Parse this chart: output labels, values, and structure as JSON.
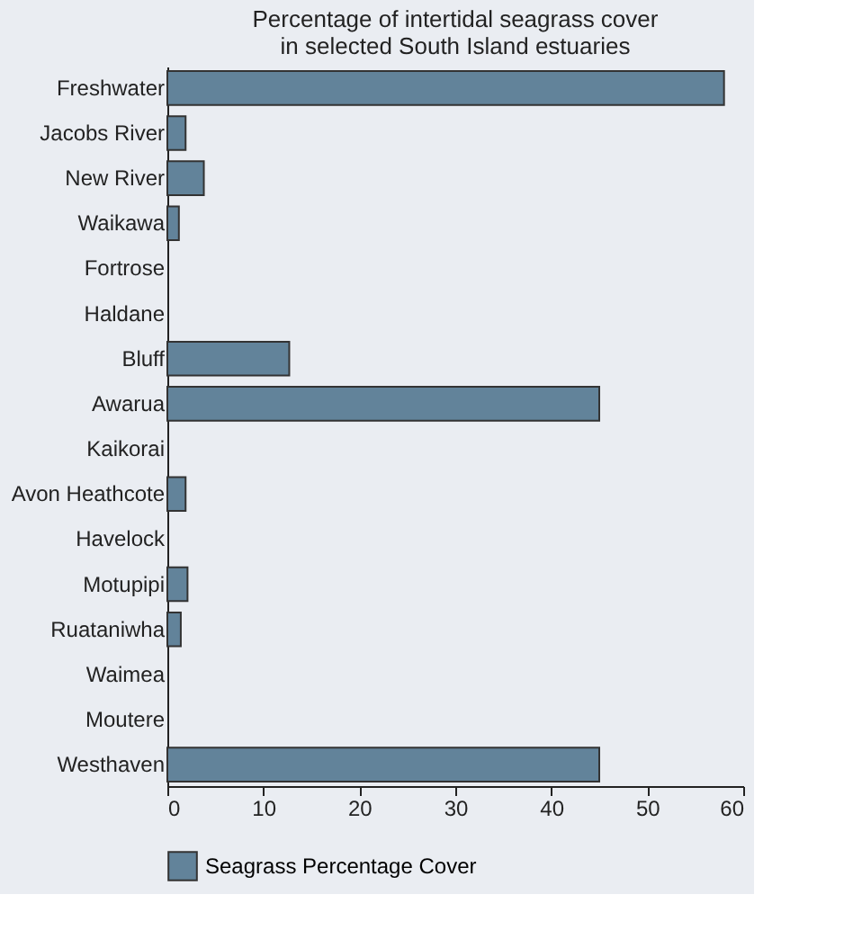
{
  "chart_data": {
    "type": "bar",
    "orientation": "horizontal",
    "title": [
      "Percentage of intertidal seagrass cover",
      "in selected South Island estuaries"
    ],
    "categories": [
      "Freshwater",
      "Jacobs River",
      "New River",
      "Waikawa",
      "Fortrose",
      "Haldane",
      "Bluff",
      "Awarua",
      "Kaikorai",
      "Avon Heathcote",
      "Havelock",
      "Motupipi",
      "Ruataniwha",
      "Waimea",
      "Moutere",
      "Westhaven"
    ],
    "series": [
      {
        "name": "Seagrass Percentage Cover",
        "color": "#62839a",
        "values": [
          58,
          1.9,
          3.8,
          1.2,
          0,
          0,
          12.7,
          45,
          0,
          1.9,
          0,
          2.1,
          1.4,
          0,
          0,
          45
        ]
      }
    ],
    "xlim": [
      0,
      60
    ],
    "xticks": [
      0,
      10,
      20,
      30,
      40,
      50,
      60
    ],
    "grid": false,
    "legend": "bottom"
  }
}
